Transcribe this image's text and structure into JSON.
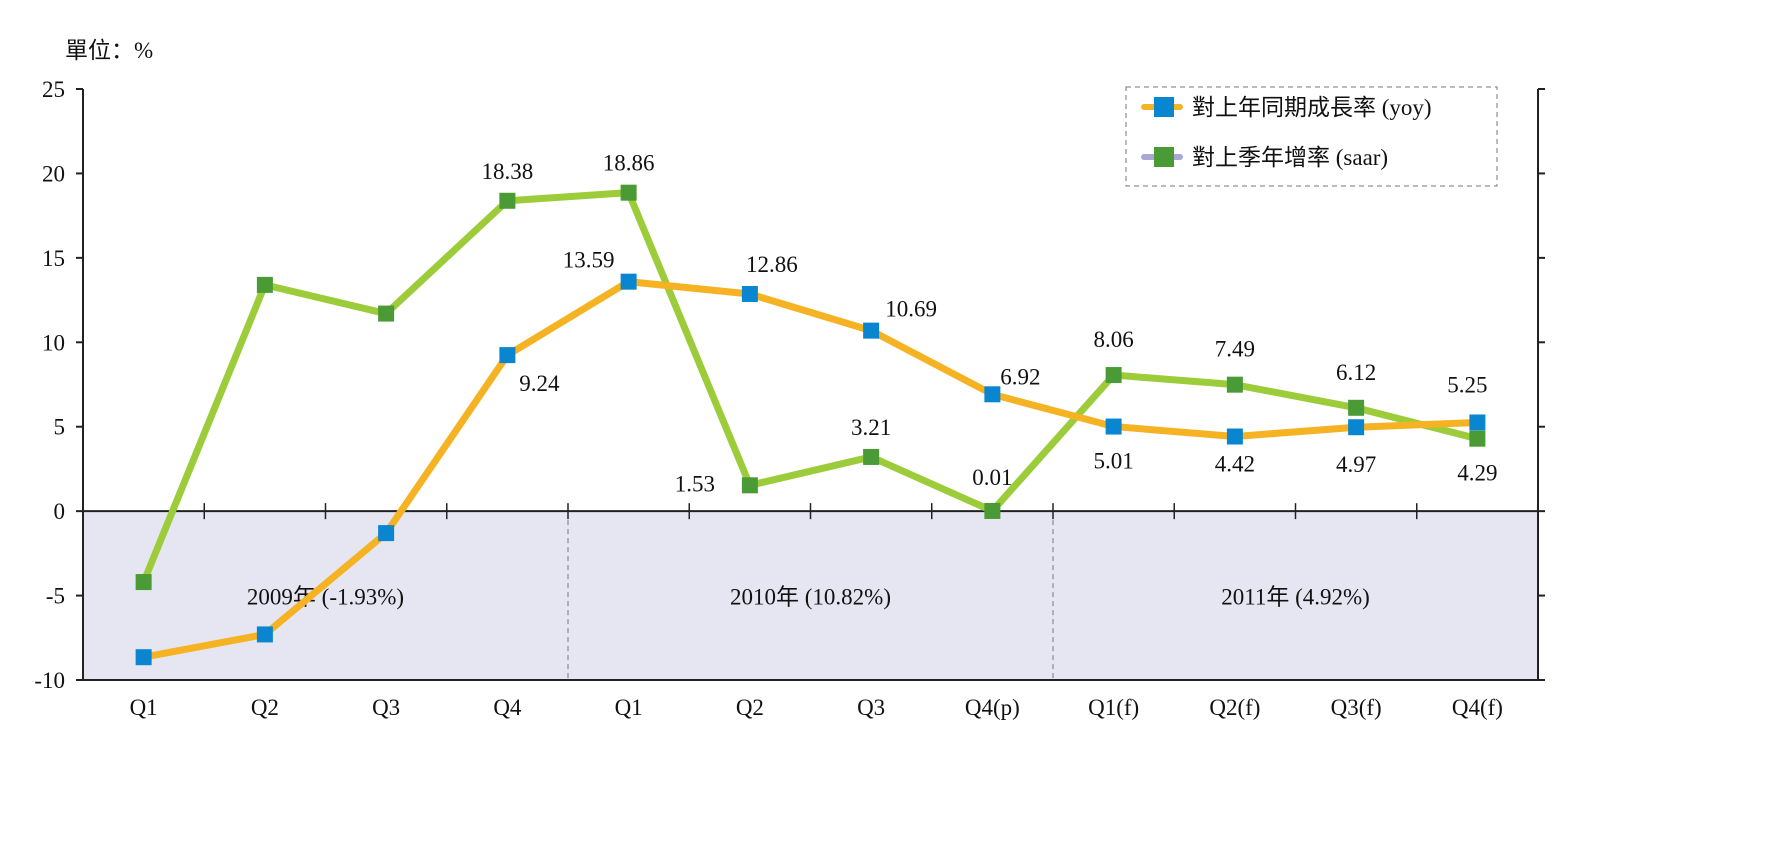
{
  "chart_data": {
    "type": "line",
    "unit_label": "單位：%",
    "categories": [
      "Q1",
      "Q2",
      "Q3",
      "Q4",
      "Q1",
      "Q2",
      "Q3",
      "Q4(p)",
      "Q1(f)",
      "Q2(f)",
      "Q3(f)",
      "Q4(f)"
    ],
    "groups": [
      {
        "label": "2009年 (-1.93%)",
        "span": [
          0,
          3
        ]
      },
      {
        "label": "2010年 (10.82%)",
        "span": [
          4,
          7
        ]
      },
      {
        "label": "2011年 (4.92%)",
        "span": [
          8,
          11
        ]
      }
    ],
    "ylim": [
      -10,
      25
    ],
    "yticks": [
      -10,
      -5,
      0,
      5,
      10,
      15,
      20,
      25
    ],
    "series": [
      {
        "name": "對上年同期成長率 (yoy)",
        "line_color": "#f5b324",
        "marker_color": "#0a86d0",
        "legend_line_color": "#f5b324",
        "values": [
          -8.65,
          -7.3,
          -1.3,
          9.24,
          13.59,
          12.86,
          10.69,
          6.92,
          5.01,
          4.42,
          4.97,
          5.25
        ],
        "labels": [
          "",
          "",
          "",
          "9.24",
          "13.59",
          "12.86",
          "10.69",
          "6.92",
          "5.01",
          "4.42",
          "4.97",
          "5.25"
        ]
      },
      {
        "name": "對上季年增率 (saar)",
        "line_color": "#9ccc3a",
        "marker_color": "#4a9a35",
        "legend_line_color": "#a7a8d4",
        "values": [
          -4.2,
          13.4,
          11.7,
          18.38,
          18.86,
          1.53,
          3.21,
          0.01,
          8.06,
          7.49,
          6.12,
          4.29
        ],
        "labels": [
          "",
          "",
          "",
          "18.38",
          "18.86",
          "1.53",
          "3.21",
          "0.01",
          "8.06",
          "7.49",
          "6.12",
          "4.29"
        ]
      }
    ],
    "negative_region_color": "#e6e6f2",
    "legend_position": "top-right"
  }
}
